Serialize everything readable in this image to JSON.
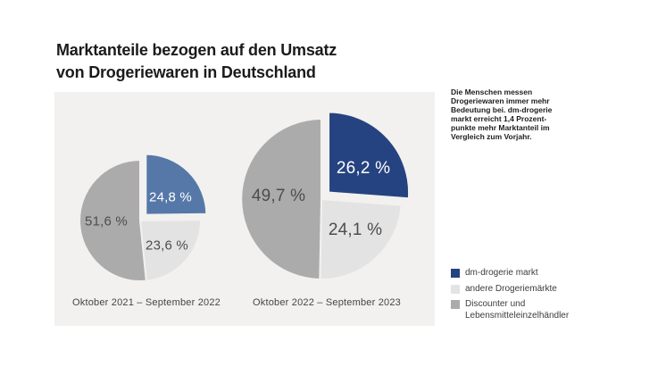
{
  "title": "Marktanteile bezogen auf den Umsatz\nvon Drogeriewaren in Deutschland",
  "annotation": "Die Menschen messen\nDrogeriewaren immer mehr\nBedeutung bei. dm-drogerie\nmarkt erreicht 1,4 Prozent-\npunkte mehr Marktanteil im\nVergleich zum Vorjahr.",
  "style": {
    "panel_bg": "#F2F1EF",
    "accent_dark_blue": "#254380",
    "accent_medium_blue": "#5578A8",
    "light_gray": "#E3E3E3",
    "medium_gray": "#ABABAB"
  },
  "legend": {
    "items": [
      {
        "label": "dm-drogerie markt",
        "color": "#254380"
      },
      {
        "label": "andere Drogeriemärkte",
        "color": "#E3E3E3"
      },
      {
        "label": "Discounter und Lebensmitteleinzelhändler",
        "color": "#ABABAB"
      }
    ]
  },
  "chart_data": [
    {
      "type": "pie",
      "caption": "Oktober 2021 – September 2022",
      "labels": [
        "dm-drogerie markt",
        "andere Drogeriemärkte",
        "Discounter und Lebensmitteleinzelhändler"
      ],
      "values": [
        24.8,
        23.6,
        51.6
      ],
      "display_values": [
        "24,8 %",
        "23,6 %",
        "51,6 %"
      ],
      "colors": [
        "#5578A8",
        "#E3E3E3",
        "#ABABAB"
      ],
      "explode_index": 0,
      "start_angle_deg": 0,
      "direction": "clockwise"
    },
    {
      "type": "pie",
      "caption": "Oktober 2022 – September 2023",
      "labels": [
        "dm-drogerie markt",
        "andere Drogeriemärkte",
        "Discounter und Lebensmitteleinzelhändler"
      ],
      "values": [
        26.2,
        24.1,
        49.7
      ],
      "display_values": [
        "26,2 %",
        "24,1 %",
        "49,7 %"
      ],
      "colors": [
        "#254380",
        "#E3E3E3",
        "#ABABAB"
      ],
      "explode_index": 0,
      "start_angle_deg": 0,
      "direction": "clockwise"
    }
  ]
}
